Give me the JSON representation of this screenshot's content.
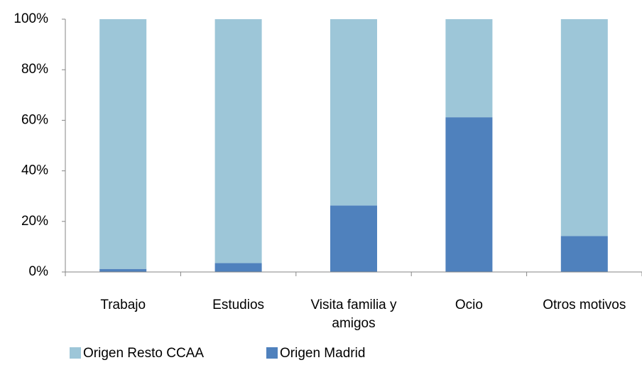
{
  "chart_data": {
    "type": "stacked_bar_100",
    "categories": [
      "Trabajo",
      "Estudios",
      "Visita familia y amigos",
      "Ocio",
      "Otros motivos"
    ],
    "series": [
      {
        "name": "Origen Resto CCAA",
        "color": "#9dc6d8",
        "values": [
          98.8,
          96.5,
          73.7,
          38.8,
          85.8
        ]
      },
      {
        "name": "Origen Madrid",
        "color": "#4f81bd",
        "values": [
          1.2,
          3.5,
          26.3,
          61.2,
          14.2
        ]
      }
    ],
    "ylim": [
      0,
      100
    ],
    "yticks": [
      {
        "value": 0,
        "label": "0%"
      },
      {
        "value": 20,
        "label": "20%"
      },
      {
        "value": 40,
        "label": "40%"
      },
      {
        "value": 60,
        "label": "60%"
      },
      {
        "value": 80,
        "label": "80%"
      },
      {
        "value": 100,
        "label": "100%"
      }
    ],
    "grid": false,
    "legend": "bottom"
  }
}
